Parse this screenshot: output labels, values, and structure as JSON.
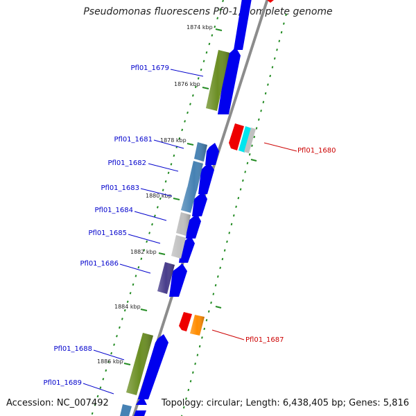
{
  "title": "Pseudomonas fluorescens Pf0-1, complete genome",
  "accession": "Accession: NC_007492",
  "topology": "Topology: circular; Length: 6,438,405 bp; Genes: 5,816",
  "colors": {
    "backbone": "#8c8c8c",
    "forward_label": "#0000cc",
    "reverse_label": "#cc0000",
    "tick": "#228b22",
    "gene_blue": "#0000ee",
    "gene_green": "#6b8e23",
    "gene_steel": "#4682b4",
    "gene_silver": "#c0c0c0",
    "gene_purple": "#483d8b",
    "gene_red": "#ee0000",
    "gene_cyan": "#00e5ee",
    "gene_orange": "#ff8c00"
  },
  "kbp_marks": [
    "1874 kbp",
    "1876 kbp",
    "1878 kbp",
    "1880 kbp",
    "1882 kbp",
    "1884 kbp",
    "1886 kbp"
  ],
  "forward_genes": [
    "Pfl01_1679",
    "Pfl01_1681",
    "Pfl01_1682",
    "Pfl01_1683",
    "Pfl01_1684",
    "Pfl01_1685",
    "Pfl01_1686",
    "Pfl01_1688",
    "Pfl01_1689"
  ],
  "reverse_genes": [
    "Pfl01_1680",
    "Pfl01_1687"
  ]
}
